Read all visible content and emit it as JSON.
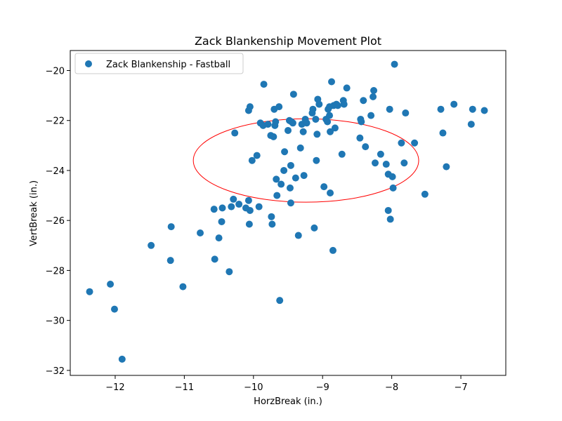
{
  "chart_data": {
    "type": "scatter",
    "title": "Zack Blankenship Movement Plot",
    "xlabel": "HorzBreak (in.)",
    "ylabel": "VertBreak (in.)",
    "xlim": [
      -12.65,
      -6.35
    ],
    "ylim": [
      -32.2,
      -19.2
    ],
    "xticks": [
      -12,
      -11,
      -10,
      -9,
      -8,
      -7
    ],
    "yticks": [
      -32,
      -30,
      -28,
      -26,
      -24,
      -22,
      -20
    ],
    "xtick_labels": [
      "−12",
      "−11",
      "−10",
      "−9",
      "−8",
      "−7"
    ],
    "ytick_labels": [
      "−32",
      "−30",
      "−28",
      "−26",
      "−24",
      "−22",
      "−20"
    ],
    "grid": false,
    "legend_position": "top-left",
    "series": [
      {
        "name": "Zack Blankenship - Fastball",
        "color": "#1f77b4",
        "points": [
          [
            -12.37,
            -28.85
          ],
          [
            -12.07,
            -28.55
          ],
          [
            -12.01,
            -29.55
          ],
          [
            -11.9,
            -31.55
          ],
          [
            -11.48,
            -27.0
          ],
          [
            -11.2,
            -27.6
          ],
          [
            -11.19,
            -26.25
          ],
          [
            -11.02,
            -28.65
          ],
          [
            -10.77,
            -26.5
          ],
          [
            -10.57,
            -25.55
          ],
          [
            -10.56,
            -27.55
          ],
          [
            -10.5,
            -26.7
          ],
          [
            -10.46,
            -26.05
          ],
          [
            -10.45,
            -25.5
          ],
          [
            -10.35,
            -28.05
          ],
          [
            -10.32,
            -25.45
          ],
          [
            -10.29,
            -25.15
          ],
          [
            -10.27,
            -22.5
          ],
          [
            -10.21,
            -25.35
          ],
          [
            -10.11,
            -25.5
          ],
          [
            -10.07,
            -25.2
          ],
          [
            -10.06,
            -26.15
          ],
          [
            -10.05,
            -25.6
          ],
          [
            -10.07,
            -21.6
          ],
          [
            -10.05,
            -21.45
          ],
          [
            -10.02,
            -23.6
          ],
          [
            -9.95,
            -23.4
          ],
          [
            -9.92,
            -25.45
          ],
          [
            -9.9,
            -22.1
          ],
          [
            -9.86,
            -22.2
          ],
          [
            -9.85,
            -20.55
          ],
          [
            -9.79,
            -22.15
          ],
          [
            -9.75,
            -22.6
          ],
          [
            -9.74,
            -25.85
          ],
          [
            -9.73,
            -26.15
          ],
          [
            -9.71,
            -22.65
          ],
          [
            -9.7,
            -21.55
          ],
          [
            -9.69,
            -22.2
          ],
          [
            -9.68,
            -22.05
          ],
          [
            -9.67,
            -24.35
          ],
          [
            -9.66,
            -25.0
          ],
          [
            -9.63,
            -21.45
          ],
          [
            -9.6,
            -24.55
          ],
          [
            -9.62,
            -29.2
          ],
          [
            -9.56,
            -24.0
          ],
          [
            -9.55,
            -23.25
          ],
          [
            -9.5,
            -22.4
          ],
          [
            -9.48,
            -22.0
          ],
          [
            -9.47,
            -24.7
          ],
          [
            -9.46,
            -23.8
          ],
          [
            -9.46,
            -25.3
          ],
          [
            -9.45,
            -22.05
          ],
          [
            -9.43,
            -22.1
          ],
          [
            -9.42,
            -20.95
          ],
          [
            -9.39,
            -24.3
          ],
          [
            -9.35,
            -26.6
          ],
          [
            -9.32,
            -23.1
          ],
          [
            -9.3,
            -22.15
          ],
          [
            -9.28,
            -22.45
          ],
          [
            -9.27,
            -24.2
          ],
          [
            -9.25,
            -21.95
          ],
          [
            -9.23,
            -22.1
          ],
          [
            -9.15,
            -21.7
          ],
          [
            -9.14,
            -21.55
          ],
          [
            -9.12,
            -26.3
          ],
          [
            -9.1,
            -21.95
          ],
          [
            -9.09,
            -23.6
          ],
          [
            -9.08,
            -22.55
          ],
          [
            -9.07,
            -21.15
          ],
          [
            -9.05,
            -21.35
          ],
          [
            -8.98,
            -24.65
          ],
          [
            -8.95,
            -21.95
          ],
          [
            -8.93,
            -22.05
          ],
          [
            -8.92,
            -21.55
          ],
          [
            -8.9,
            -21.8
          ],
          [
            -8.9,
            -21.45
          ],
          [
            -8.89,
            -22.45
          ],
          [
            -8.89,
            -24.9
          ],
          [
            -8.87,
            -20.45
          ],
          [
            -8.85,
            -27.2
          ],
          [
            -8.84,
            -21.4
          ],
          [
            -8.82,
            -22.3
          ],
          [
            -8.8,
            -21.35
          ],
          [
            -8.78,
            -21.4
          ],
          [
            -8.72,
            -23.35
          ],
          [
            -8.7,
            -21.2
          ],
          [
            -8.69,
            -21.35
          ],
          [
            -8.65,
            -20.7
          ],
          [
            -8.46,
            -22.7
          ],
          [
            -8.45,
            -21.95
          ],
          [
            -8.44,
            -22.05
          ],
          [
            -8.41,
            -21.2
          ],
          [
            -8.38,
            -23.05
          ],
          [
            -8.3,
            -21.8
          ],
          [
            -8.27,
            -21.05
          ],
          [
            -8.26,
            -20.8
          ],
          [
            -8.24,
            -23.7
          ],
          [
            -8.16,
            -23.35
          ],
          [
            -8.08,
            -23.75
          ],
          [
            -8.05,
            -24.15
          ],
          [
            -8.05,
            -25.6
          ],
          [
            -8.03,
            -21.55
          ],
          [
            -8.02,
            -25.95
          ],
          [
            -7.99,
            -24.25
          ],
          [
            -7.98,
            -24.7
          ],
          [
            -7.96,
            -19.75
          ],
          [
            -7.86,
            -22.9
          ],
          [
            -7.82,
            -23.7
          ],
          [
            -7.8,
            -21.7
          ],
          [
            -7.67,
            -22.9
          ],
          [
            -7.52,
            -24.95
          ],
          [
            -7.29,
            -21.55
          ],
          [
            -7.26,
            -22.5
          ],
          [
            -7.21,
            -23.85
          ],
          [
            -7.1,
            -21.35
          ],
          [
            -6.85,
            -22.15
          ],
          [
            -6.83,
            -21.55
          ],
          [
            -6.66,
            -21.6
          ]
        ]
      }
    ],
    "ellipse": {
      "center": [
        -9.24,
        -23.6
      ],
      "radius_x": 1.63,
      "radius_y": 1.67,
      "color": "#ff0000"
    }
  }
}
